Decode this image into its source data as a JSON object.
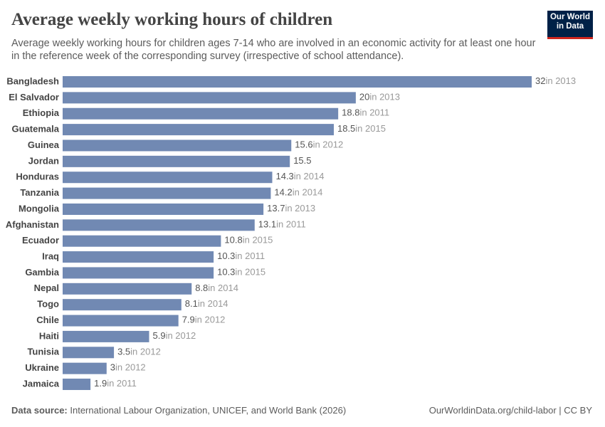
{
  "chart_data": {
    "type": "bar",
    "orientation": "horizontal",
    "title": "Average weekly working hours of children",
    "subtitle": "Average weekly working hours for children ages 7-14 who are involved in an economic activity for at least one hour in the reference week of the corresponding survey (irrespective of school attendance).",
    "logo": [
      "Our World",
      "in Data"
    ],
    "categories": [
      "Bangladesh",
      "El Salvador",
      "Ethiopia",
      "Guatemala",
      "Guinea",
      "Jordan",
      "Honduras",
      "Tanzania",
      "Mongolia",
      "Afghanistan",
      "Ecuador",
      "Iraq",
      "Gambia",
      "Nepal",
      "Togo",
      "Chile",
      "Haiti",
      "Tunisia",
      "Ukraine",
      "Jamaica"
    ],
    "values": [
      32,
      20,
      18.8,
      18.5,
      15.6,
      15.5,
      14.3,
      14.2,
      13.7,
      13.1,
      10.8,
      10.3,
      10.3,
      8.8,
      8.1,
      7.9,
      5.9,
      3.5,
      3,
      1.9
    ],
    "annotations": [
      "in 2013",
      "in 2013",
      "in 2011",
      "in 2015",
      "in 2012",
      null,
      "in 2014",
      "in 2014",
      "in 2013",
      "in 2011",
      "in 2015",
      "in 2011",
      "in 2015",
      "in 2014",
      "in 2014",
      "in 2012",
      "in 2012",
      "in 2012",
      "in 2012",
      "in 2011"
    ],
    "color": "#7189b3",
    "source_label": "Data source:",
    "source": "International Labour Organization, UNICEF, and World Bank (2026)",
    "url": "OurWorldinData.org/child-labor | CC BY"
  }
}
